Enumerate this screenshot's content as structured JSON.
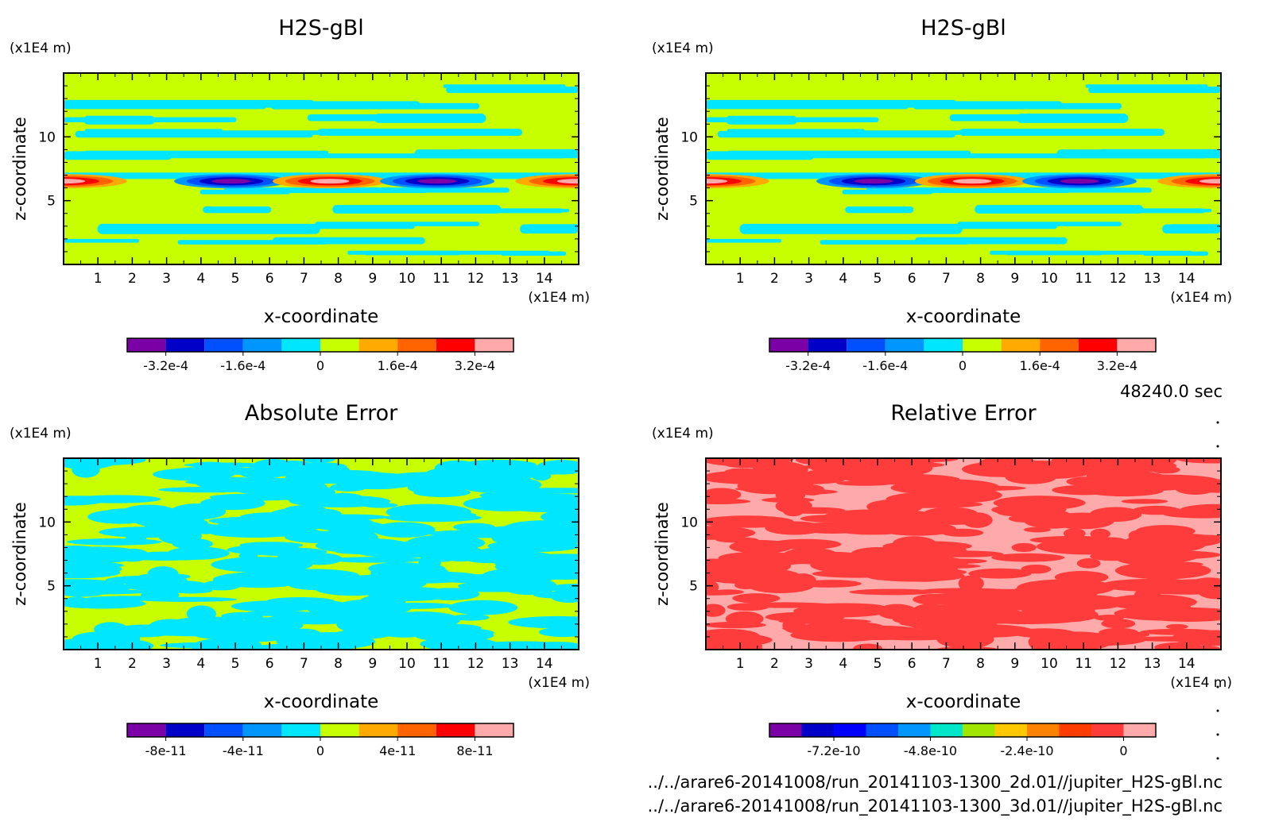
{
  "time_label": "48240.0 sec",
  "files": [
    "../../arare6-20141008/run_20141103-1300_2d.01//jupiter_H2S-gBl.nc",
    "../../arare6-20141008/run_20141103-1300_3d.01//jupiter_H2S-gBl.nc"
  ],
  "chart_data": [
    {
      "type": "heatmap",
      "title": "H2S-gBl",
      "xlabel": "x-coordinate",
      "ylabel": "z-coordinate",
      "xunit": "(x1E4 m)",
      "yunit": "(x1E4 m)",
      "xlim": [
        0,
        15
      ],
      "ylim": [
        0,
        15
      ],
      "x_ticks": [
        "1",
        "2",
        "3",
        "4",
        "5",
        "6",
        "7",
        "8",
        "9",
        "10",
        "11",
        "12",
        "13",
        "14"
      ],
      "y_ticks": [
        "5",
        "10"
      ],
      "colorbar": {
        "colors": [
          "#7b00a6",
          "#0000c8",
          "#0050ff",
          "#0096ff",
          "#00e6ff",
          "#c8ff00",
          "#ffaa00",
          "#ff6400",
          "#ff0000",
          "#ffaaaa"
        ],
        "tick_labels": [
          "-3.2e-4",
          "-1.6e-4",
          "0",
          "1.6e-4",
          "3.2e-4"
        ]
      },
      "field": "mixing"
    },
    {
      "type": "heatmap",
      "title": "H2S-gBl",
      "xlabel": "x-coordinate",
      "ylabel": "z-coordinate",
      "xunit": "(x1E4 m)",
      "yunit": "(x1E4 m)",
      "xlim": [
        0,
        15
      ],
      "ylim": [
        0,
        15
      ],
      "x_ticks": [
        "1",
        "2",
        "3",
        "4",
        "5",
        "6",
        "7",
        "8",
        "9",
        "10",
        "11",
        "12",
        "13",
        "14"
      ],
      "y_ticks": [
        "5",
        "10"
      ],
      "colorbar": {
        "colors": [
          "#7b00a6",
          "#0000c8",
          "#0050ff",
          "#0096ff",
          "#00e6ff",
          "#c8ff00",
          "#ffaa00",
          "#ff6400",
          "#ff0000",
          "#ffaaaa"
        ],
        "tick_labels": [
          "-3.2e-4",
          "-1.6e-4",
          "0",
          "1.6e-4",
          "3.2e-4"
        ]
      },
      "field": "mixing"
    },
    {
      "type": "heatmap",
      "title": "Absolute Error",
      "xlabel": "x-coordinate",
      "ylabel": "z-coordinate",
      "xunit": "(x1E4 m)",
      "yunit": "(x1E4 m)",
      "xlim": [
        0,
        15
      ],
      "ylim": [
        0,
        15
      ],
      "x_ticks": [
        "1",
        "2",
        "3",
        "4",
        "5",
        "6",
        "7",
        "8",
        "9",
        "10",
        "11",
        "12",
        "13",
        "14"
      ],
      "y_ticks": [
        "5",
        "10"
      ],
      "colorbar": {
        "colors": [
          "#7b00a6",
          "#0000c8",
          "#0050ff",
          "#0096ff",
          "#00e6ff",
          "#c8ff00",
          "#ffaa00",
          "#ff6400",
          "#ff0000",
          "#ffaaaa"
        ],
        "tick_labels": [
          "-8e-11",
          "-4e-11",
          "0",
          "4e-11",
          "8e-11"
        ]
      },
      "field": "abs_error"
    },
    {
      "type": "heatmap",
      "title": "Relative Error",
      "xlabel": "x-coordinate",
      "ylabel": "z-coordinate",
      "xunit": "(x1E4 m)",
      "yunit": "(x1E4 m)",
      "xlim": [
        0,
        15
      ],
      "ylim": [
        0,
        15
      ],
      "x_ticks": [
        "1",
        "2",
        "3",
        "4",
        "5",
        "6",
        "7",
        "8",
        "9",
        "10",
        "11",
        "12",
        "13",
        "14"
      ],
      "y_ticks": [
        "5",
        "10"
      ],
      "colorbar": {
        "colors": [
          "#7b00a6",
          "#0000c8",
          "#0000ff",
          "#0050ff",
          "#0096ff",
          "#00e6c8",
          "#a0e600",
          "#ffc800",
          "#ff8200",
          "#ff3c00",
          "#ff3c3c",
          "#ffaaaa"
        ],
        "tick_labels": [
          "-7.2e-10",
          "-4.8e-10",
          "-2.4e-10",
          "0"
        ]
      },
      "field": "rel_error"
    }
  ]
}
